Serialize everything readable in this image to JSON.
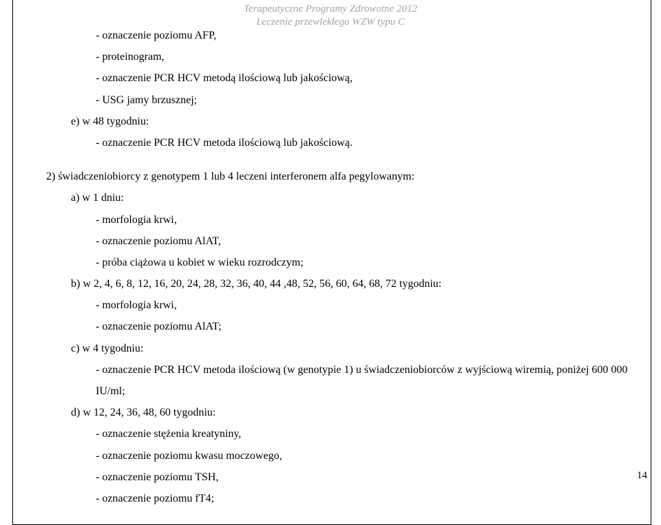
{
  "header": {
    "line1": "Terapeutyczne Programy Zdrowotne 2012",
    "line2": "Leczenie przewlekłego WZW typu C"
  },
  "doc": {
    "p1": "- oznaczenie poziomu AFP,",
    "p2": "- proteinogram,",
    "p3": "- oznaczenie PCR HCV metodą ilościową lub jakościową,",
    "p4": "- USG jamy brzusznej;",
    "p5": "e) w 48 tygodniu:",
    "p6": "- oznaczenie PCR HCV metoda ilościową lub jakościową.",
    "p7": "2) świadczeniobiorcy z genotypem 1 lub 4 leczeni interferonem alfa pegylowanym:",
    "p8": "a) w 1 dniu:",
    "p9": "- morfologia krwi,",
    "p10": "- oznaczenie poziomu AlAT,",
    "p11": "- próba ciążowa u kobiet w wieku rozrodczym;",
    "p12": "b) w 2, 4, 6, 8, 12, 16, 20, 24, 28, 32, 36, 40, 44 ,48, 52, 56, 60, 64, 68, 72 tygodniu:",
    "p13": "- morfologia krwi,",
    "p14": "- oznaczenie poziomu AlAT;",
    "p15": "c) w 4 tygodniu:",
    "p16": "- oznaczenie PCR HCV metoda ilościową (w genotypie 1) u świadczeniobiorców z wyjściową wiremią, poniżej 600 000 IU/ml;",
    "p17": "d) w 12, 24, 36, 48, 60 tygodniu:",
    "p18": "- oznaczenie stężenia kreatyniny,",
    "p19": "- oznaczenie poziomu kwasu moczowego,",
    "p20": "- oznaczenie poziomu TSH,",
    "p21": "- oznaczenie poziomu fT4;"
  },
  "page": {
    "number": "14"
  }
}
